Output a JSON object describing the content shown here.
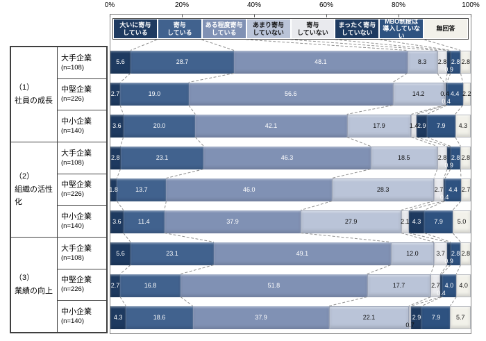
{
  "chart_data": {
    "type": "bar",
    "stacked": true,
    "orientation": "horizontal",
    "value_unit": "%",
    "grid": false,
    "legend_position": "top",
    "axis": {
      "min": 0,
      "max": 100,
      "ticks": [
        "0%",
        "20%",
        "40%",
        "60%",
        "80%",
        "100%"
      ]
    },
    "series": [
      {
        "name": "大いに寄与している",
        "legend_lines": "大いに寄与\nしている",
        "color": "#1e3a60",
        "text_color": "#ffffff"
      },
      {
        "name": "寄与している",
        "legend_lines": "寄与\nしている",
        "color": "#41628e",
        "text_color": "#ffffff"
      },
      {
        "name": "ある程度寄与している",
        "legend_lines": "ある程度寄与\nしている",
        "color": "#8091b4",
        "text_color": "#ffffff"
      },
      {
        "name": "あまり寄与していない",
        "legend_lines": "あまり寄与\nしていない",
        "color": "#bac4d8",
        "text_color": "#111111"
      },
      {
        "name": "寄与していない",
        "legend_lines": "寄与\nしていない",
        "color": "#e9eaee",
        "text_color": "#111111"
      },
      {
        "name": "まったく寄与していない",
        "legend_lines": "まったく寄与\nしていない",
        "color": "#1e3a60",
        "text_color": "#ffffff"
      },
      {
        "name": "MBO制度は導入していない",
        "legend_lines": "MBO制度は\n導入していない",
        "color": "#2e5280",
        "text_color": "#ffffff"
      },
      {
        "name": "無回答",
        "legend_lines": "無回答",
        "color": "#f2f1ea",
        "text_color": "#111111"
      }
    ],
    "groups": [
      {
        "label_lines": "（1）\n社員の成長",
        "rows": [
          {
            "category": "大手企業",
            "n_label": "(n=108)",
            "values": [
              5.6,
              28.7,
              48.1,
              8.3,
              2.8,
              0.9,
              2.8,
              2.8
            ]
          },
          {
            "category": "中堅企業",
            "n_label": "(n=226)",
            "values": [
              2.7,
              19.0,
              56.6,
              14.2,
              0.4,
              0.4,
              4.4,
              2.2
            ]
          },
          {
            "category": "中小企業",
            "n_label": "(n=140)",
            "values": [
              3.6,
              20.0,
              42.1,
              17.9,
              1.4,
              2.9,
              7.9,
              4.3
            ]
          }
        ]
      },
      {
        "label_lines": "（2）\n組織の活性化",
        "rows": [
          {
            "category": "大手企業",
            "n_label": "(n=108)",
            "values": [
              2.8,
              23.1,
              46.3,
              18.5,
              2.8,
              0.9,
              2.8,
              2.8
            ]
          },
          {
            "category": "中堅企業",
            "n_label": "(n=226)",
            "values": [
              1.8,
              13.7,
              46.0,
              28.3,
              2.7,
              0.4,
              4.4,
              2.7
            ]
          },
          {
            "category": "中小企業",
            "n_label": "(n=140)",
            "values": [
              3.6,
              11.4,
              37.9,
              27.9,
              2.1,
              4.3,
              7.9,
              5.0
            ]
          }
        ]
      },
      {
        "label_lines": "（3）\n業績の向上",
        "rows": [
          {
            "category": "大手企業",
            "n_label": "(n=108)",
            "values": [
              5.6,
              23.1,
              49.1,
              12.0,
              3.7,
              0.9,
              2.8,
              2.8
            ]
          },
          {
            "category": "中堅企業",
            "n_label": "(n=226)",
            "values": [
              2.7,
              16.8,
              51.8,
              17.7,
              2.7,
              0.4,
              4.0,
              4.0
            ]
          },
          {
            "category": "中小企業",
            "n_label": "(n=140)",
            "values": [
              4.3,
              18.6,
              37.9,
              22.1,
              0.7,
              2.9,
              7.9,
              5.7
            ]
          }
        ]
      }
    ],
    "style": {
      "background": "#ffffff",
      "plot_border": "#7f7f7f",
      "table_border": "#3f3f3f",
      "series_line_color": "#8f8f8f"
    }
  }
}
